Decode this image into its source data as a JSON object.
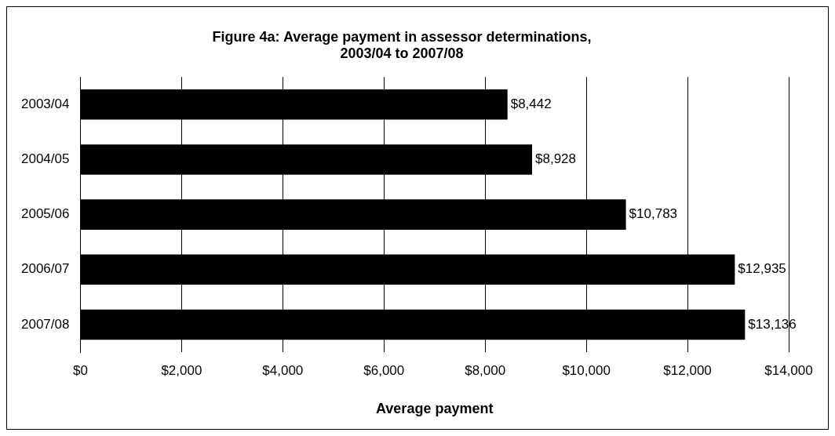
{
  "chart_data": {
    "type": "bar",
    "orientation": "horizontal",
    "title": "Figure 4a: Average payment in assessor determinations,\n2003/04 to 2007/08",
    "xlabel": "Average payment",
    "categories": [
      "2003/04",
      "2004/05",
      "2005/06",
      "2006/07",
      "2007/08"
    ],
    "values": [
      8442,
      8928,
      10783,
      12935,
      13136
    ],
    "value_labels": [
      "$8,442",
      "$8,928",
      "$10,783",
      "$12,935",
      "$13,136"
    ],
    "color": "#000000",
    "xlim": [
      0,
      14000
    ],
    "xticks": [
      {
        "value": 0,
        "label": "$0"
      },
      {
        "value": 2000,
        "label": "$2,000"
      },
      {
        "value": 4000,
        "label": "$4,000"
      },
      {
        "value": 6000,
        "label": "$6,000"
      },
      {
        "value": 8000,
        "label": "$8,000"
      },
      {
        "value": 10000,
        "label": "$10,000"
      },
      {
        "value": 12000,
        "label": "$12,000"
      },
      {
        "value": 14000,
        "label": "$14,000"
      }
    ],
    "grid": "x",
    "legend": false
  }
}
